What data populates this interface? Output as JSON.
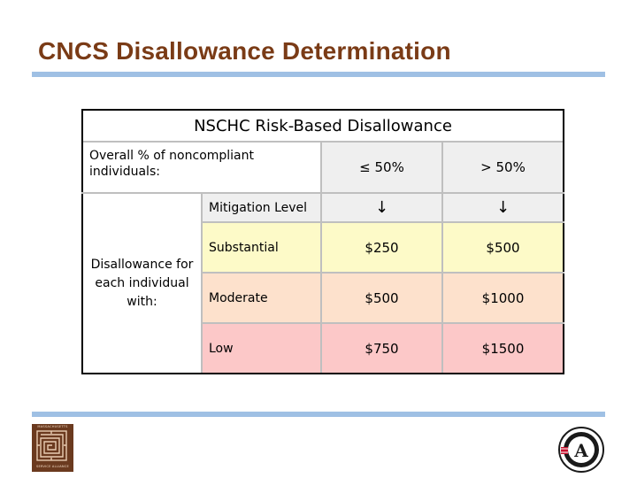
{
  "slide": {
    "title": "CNCS Disallowance Determination"
  },
  "table": {
    "caption": "NSCHC Risk-Based Disallowance",
    "overall_label": "Overall % of noncompliant individuals:",
    "col_headers": [
      "≤ 50%",
      "> 50%"
    ],
    "mitigation_label": "Mitigation Level",
    "arrow_glyph": "↓",
    "disallowance_label": "Disallowance for each individual with:",
    "rows": [
      {
        "level": "Substantial",
        "amounts": [
          "$250",
          "$500"
        ],
        "color": "#fdfac8"
      },
      {
        "level": "Moderate",
        "amounts": [
          "$500",
          "$1000"
        ],
        "color": "#fde1cc"
      },
      {
        "level": "Low",
        "amounts": [
          "$750",
          "$1500"
        ],
        "color": "#fcc8c8"
      }
    ]
  },
  "logos": {
    "left": {
      "icon": "maze-pattern-logo-icon",
      "top_text": "MASSACHUSETTS",
      "bottom_text": "SERVICE ALLIANCE"
    },
    "right": {
      "icon": "americorps-seal-icon",
      "letter": "A"
    }
  },
  "colors": {
    "title": "#7a3b16",
    "rule": "#9fc0e4",
    "header_bg": "#efefef"
  }
}
